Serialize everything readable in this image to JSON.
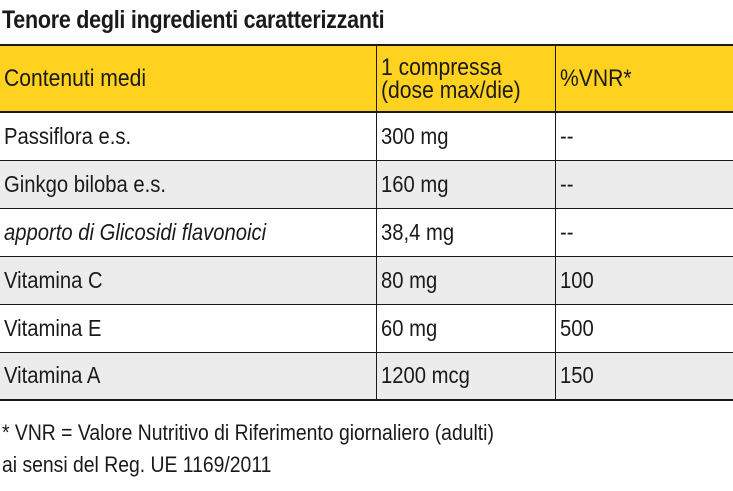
{
  "title": "Tenore degli ingredienti caratterizzanti",
  "table": {
    "headers": {
      "col1": "Contenuti medi",
      "col2_line1": "1 compressa",
      "col2_line2": "(dose max/die)",
      "col3": "%VNR*"
    },
    "rows": [
      {
        "name": "Passiflora e.s.",
        "amount": "300 mg",
        "vnr": "--",
        "italic": false
      },
      {
        "name": "Ginkgo biloba e.s.",
        "amount": "160 mg",
        "vnr": "--",
        "italic": false
      },
      {
        "name": "apporto di Glicosidi flavonoici",
        "amount": "38,4 mg",
        "vnr": "--",
        "italic": true
      },
      {
        "name": "Vitamina C",
        "amount": "80 mg",
        "vnr": "100",
        "italic": false
      },
      {
        "name": "Vitamina E",
        "amount": "60 mg",
        "vnr": "500",
        "italic": false
      },
      {
        "name": "Vitamina A",
        "amount": "1200 mcg",
        "vnr": "150",
        "italic": false
      }
    ]
  },
  "footnote": {
    "line1": "* VNR = Valore Nutritivo di Riferimento giornaliero (adulti)",
    "line2": "ai sensi del Reg. UE 1169/2011"
  },
  "colors": {
    "header_bg": "#ffd21f",
    "stripe_bg": "#ececec",
    "text": "#1a1a1a"
  }
}
